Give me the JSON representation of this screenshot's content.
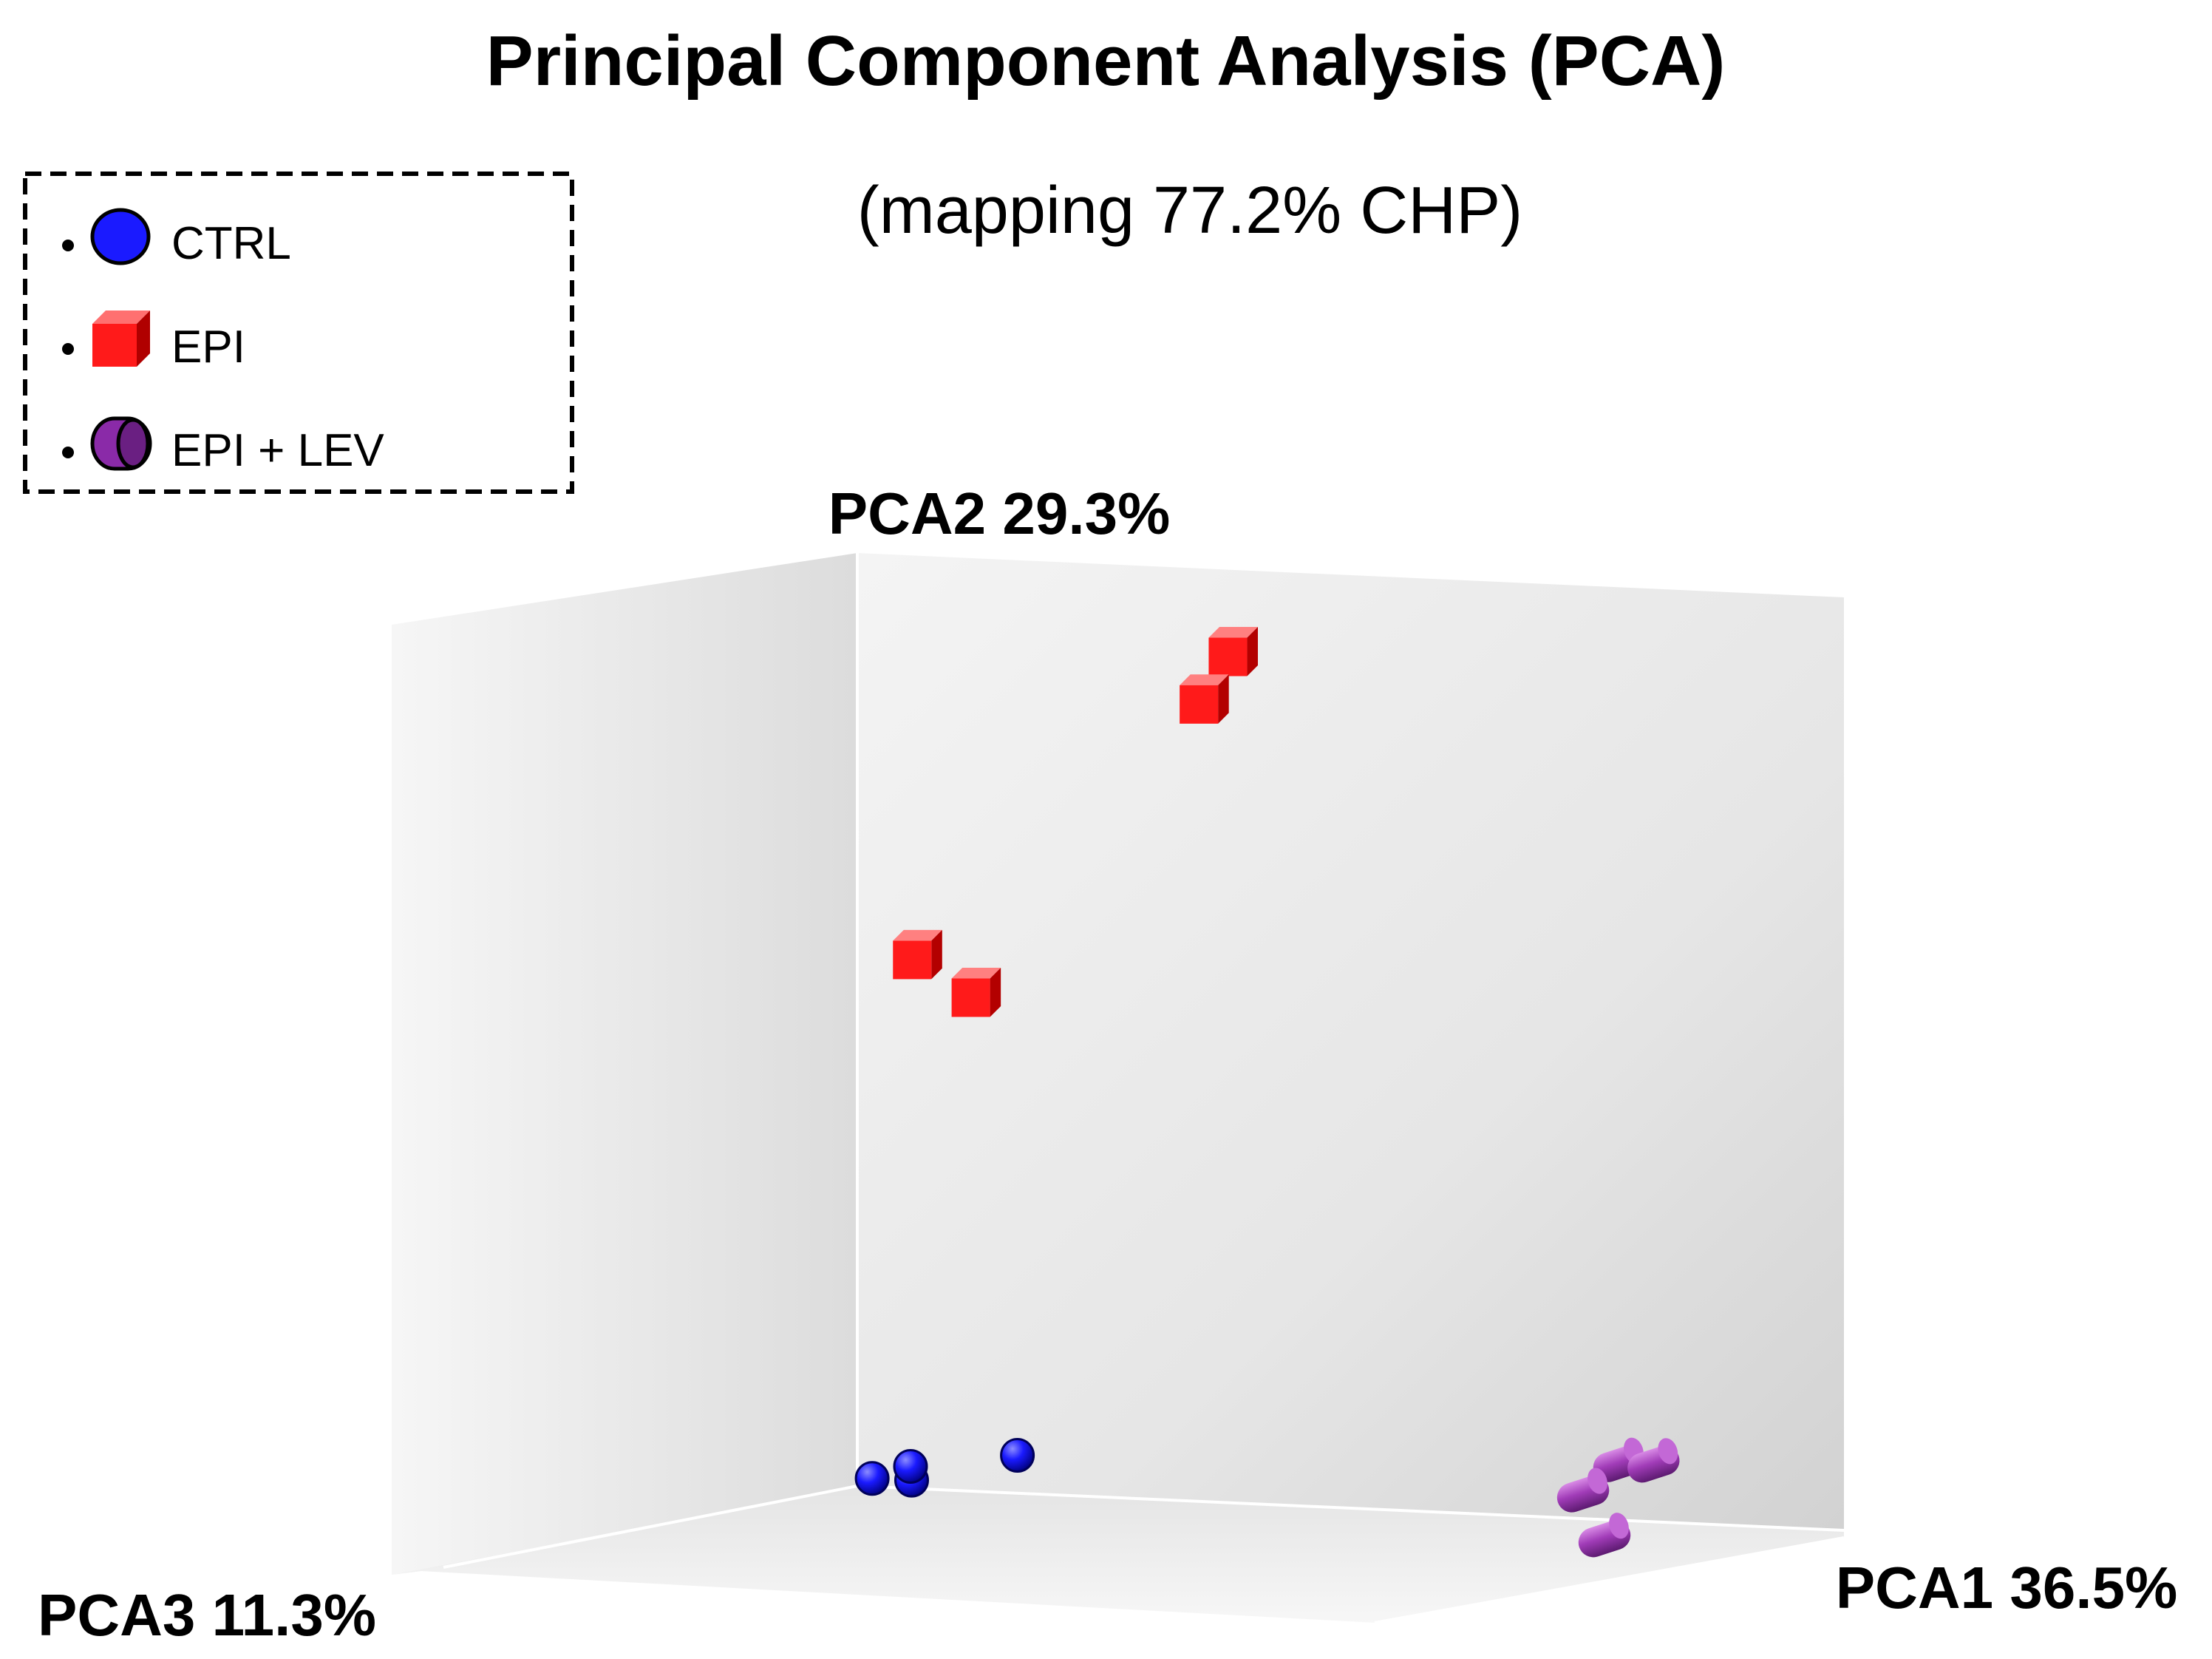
{
  "chart_data": {
    "type": "scatter",
    "title": "Principal Component Analysis (PCA)",
    "subtitle": "(mapping 77.2% CHP)",
    "axes": {
      "pc1": "PCA1 36.5%",
      "pc2": "PCA2 29.3%",
      "pc3": "PCA3 11.3%"
    },
    "projection": "3d",
    "grid": false,
    "legend_position": "top-left",
    "legend": [
      {
        "label": "CTRL",
        "marker": "sphere",
        "color": "#1a1aff"
      },
      {
        "label": "EPI",
        "marker": "cube",
        "color": "#ff1a1a"
      },
      {
        "label": "EPI + LEV",
        "marker": "cylinder",
        "color": "#8a2aa8"
      }
    ],
    "series": [
      {
        "name": "CTRL",
        "marker": "sphere",
        "color": "#1a1aff",
        "points": [
          {
            "x": 0.1,
            "y": 0.03,
            "z": 0.18
          },
          {
            "x": 0.14,
            "y": 0.03,
            "z": 0.18
          },
          {
            "x": 0.12,
            "y": 0.04,
            "z": 0.14
          },
          {
            "x": 0.2,
            "y": 0.05,
            "z": 0.08
          }
        ]
      },
      {
        "name": "EPI",
        "marker": "cube",
        "color": "#ff1a1a",
        "points": [
          {
            "x": 0.47,
            "y": 0.93,
            "z": 0.2
          },
          {
            "x": 0.45,
            "y": 0.88,
            "z": 0.22
          },
          {
            "x": 0.15,
            "y": 0.59,
            "z": 0.2
          },
          {
            "x": 0.2,
            "y": 0.55,
            "z": 0.18
          }
        ]
      },
      {
        "name": "EPI + LEV",
        "marker": "cylinder",
        "color": "#8a2aa8",
        "points": [
          {
            "x": 0.81,
            "y": 0.07,
            "z": 0.08
          },
          {
            "x": 0.84,
            "y": 0.07,
            "z": 0.07
          },
          {
            "x": 0.83,
            "y": 0.05,
            "z": 0.2
          },
          {
            "x": 0.88,
            "y": 0.01,
            "z": 0.26
          }
        ]
      }
    ]
  },
  "colors": {
    "ctrl": "#1a1aff",
    "epi": "#ff1a1a",
    "epi_lev": "#8a2aa8",
    "background": "#ffffff"
  }
}
